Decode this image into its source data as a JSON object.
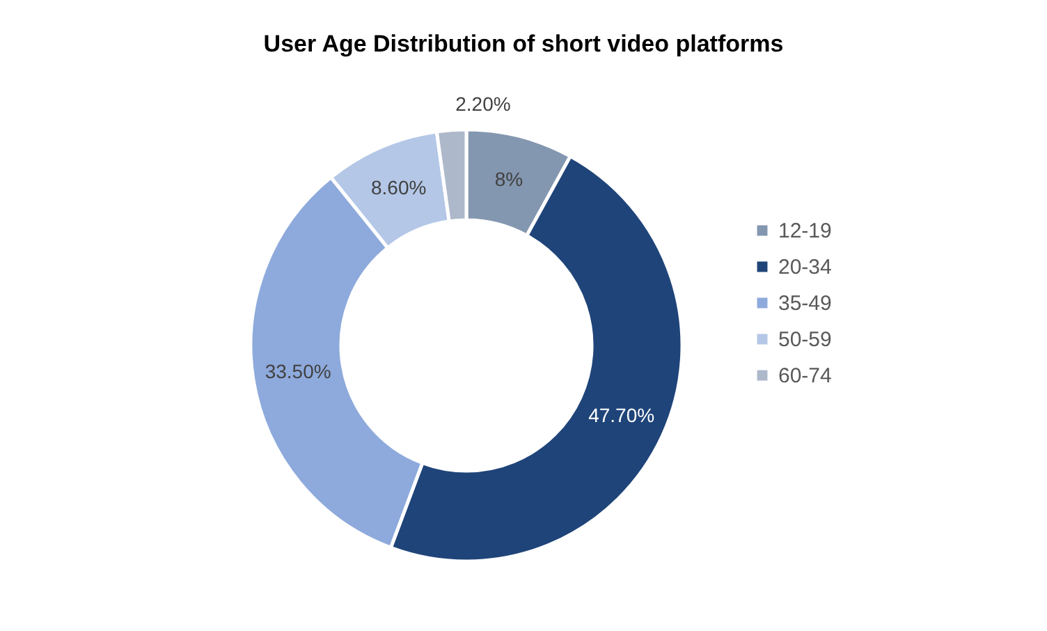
{
  "chart_data": {
    "type": "donut",
    "title": "User Age Distribution of short video platforms",
    "categories": [
      "12-19",
      "20-34",
      "35-49",
      "50-59",
      "60-74"
    ],
    "values": [
      8,
      47.7,
      33.5,
      8.6,
      2.2
    ],
    "value_labels": [
      "8%",
      "47.70%",
      "33.50%",
      "8.60%",
      "2.20%"
    ],
    "colors": [
      "#8497b0",
      "#1f4479",
      "#8eaadc",
      "#b4c7e7",
      "#adb9ca"
    ],
    "legend": "right"
  }
}
